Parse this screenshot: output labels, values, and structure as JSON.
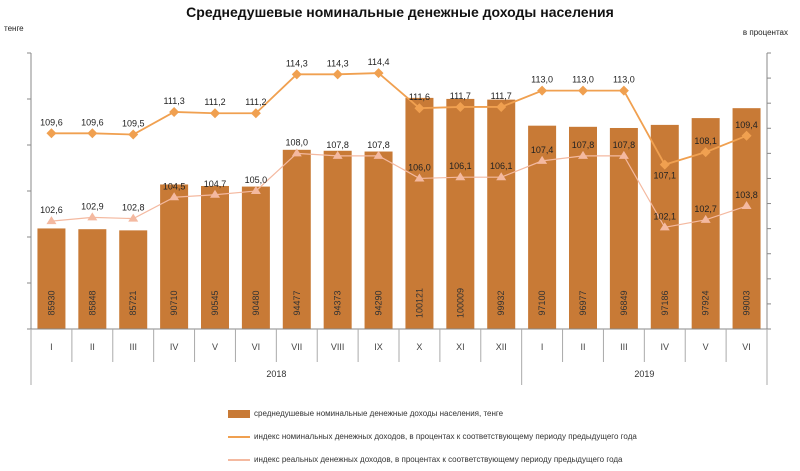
{
  "chart_data": {
    "type": "bar+line",
    "title": "Среднедушевые номинальные денежные доходы населения",
    "left_axis_unit": "тенге",
    "right_axis_unit": "в процентах",
    "left_ylim": [
      75000,
      105000
    ],
    "right_ylim": [
      94,
      116
    ],
    "grid": false,
    "legend_position": "bottom",
    "categories": [
      "I",
      "II",
      "III",
      "IV",
      "V",
      "VI",
      "VII",
      "VIII",
      "IX",
      "X",
      "XI",
      "XII",
      "I",
      "II",
      "III",
      "IV",
      "V",
      "VI"
    ],
    "years": [
      {
        "label": "2018",
        "months": 12
      },
      {
        "label": "2019",
        "months": 6
      }
    ],
    "series": [
      {
        "name": "среднедушевые номинальные денежные доходы населения, тенге",
        "type": "bar",
        "axis": "left",
        "color": "#C87A36",
        "values": [
          85930,
          85848,
          85721,
          90710,
          90545,
          90480,
          94477,
          94373,
          94290,
          100121,
          100009,
          99932,
          97100,
          96977,
          96849,
          97186,
          97924,
          99003
        ]
      },
      {
        "name": "индекс номинальных денежных доходов, в процентах к соответствующему периоду предыдущего года",
        "type": "line",
        "marker": "diamond",
        "axis": "right",
        "color": "#F0A050",
        "values": [
          109.6,
          109.6,
          109.5,
          111.3,
          111.2,
          111.2,
          114.3,
          114.3,
          114.4,
          111.6,
          111.7,
          111.7,
          113.0,
          113.0,
          113.0,
          107.1,
          108.1,
          109.4
        ]
      },
      {
        "name": "индекс реальных денежных доходов, в процентах к соответствующему периоду предыдущего года",
        "type": "line",
        "marker": "triangle",
        "axis": "right",
        "color": "#F4B9A0",
        "values": [
          102.6,
          102.9,
          102.8,
          104.5,
          104.7,
          105.0,
          108.0,
          107.8,
          107.8,
          106.0,
          106.1,
          106.1,
          107.4,
          107.8,
          107.8,
          102.1,
          102.7,
          103.8
        ]
      }
    ]
  }
}
